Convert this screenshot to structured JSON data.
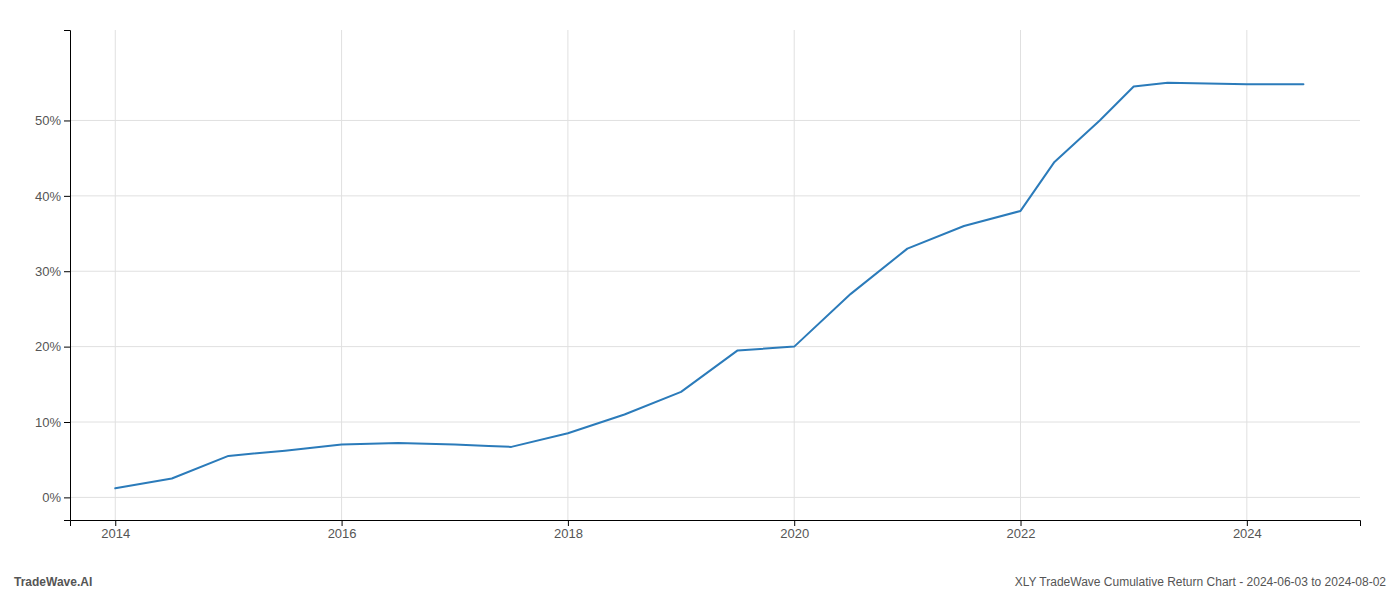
{
  "chart_data": {
    "type": "line",
    "x": [
      2014.0,
      2014.5,
      2015.0,
      2015.5,
      2016.0,
      2016.5,
      2017.0,
      2017.3,
      2017.5,
      2018.0,
      2018.5,
      2019.0,
      2019.5,
      2020.0,
      2020.5,
      2021.0,
      2021.5,
      2022.0,
      2022.3,
      2022.7,
      2023.0,
      2023.3,
      2024.0,
      2024.5
    ],
    "values": [
      1.2,
      2.5,
      5.5,
      6.2,
      7.0,
      7.2,
      7.0,
      6.8,
      6.7,
      8.5,
      11.0,
      14.0,
      19.5,
      20.0,
      27.0,
      33.0,
      36.0,
      38.0,
      44.5,
      50.0,
      54.5,
      55.0,
      54.8,
      54.8
    ],
    "color": "#2b7bba",
    "xlim": [
      2013.6,
      2025.0
    ],
    "ylim": [
      -3,
      62
    ],
    "xticks": [
      2014,
      2016,
      2018,
      2020,
      2022,
      2024
    ],
    "yticks": [
      {
        "value": 0,
        "label": "0%"
      },
      {
        "value": 10,
        "label": "10%"
      },
      {
        "value": 20,
        "label": "20%"
      },
      {
        "value": 30,
        "label": "30%"
      },
      {
        "value": 40,
        "label": "40%"
      },
      {
        "value": 50,
        "label": "50%"
      }
    ],
    "grid": true,
    "annotations": [
      "TradeWave.AI",
      "XLY TradeWave Cumulative Return Chart - 2024-06-03 to 2024-08-02"
    ]
  }
}
